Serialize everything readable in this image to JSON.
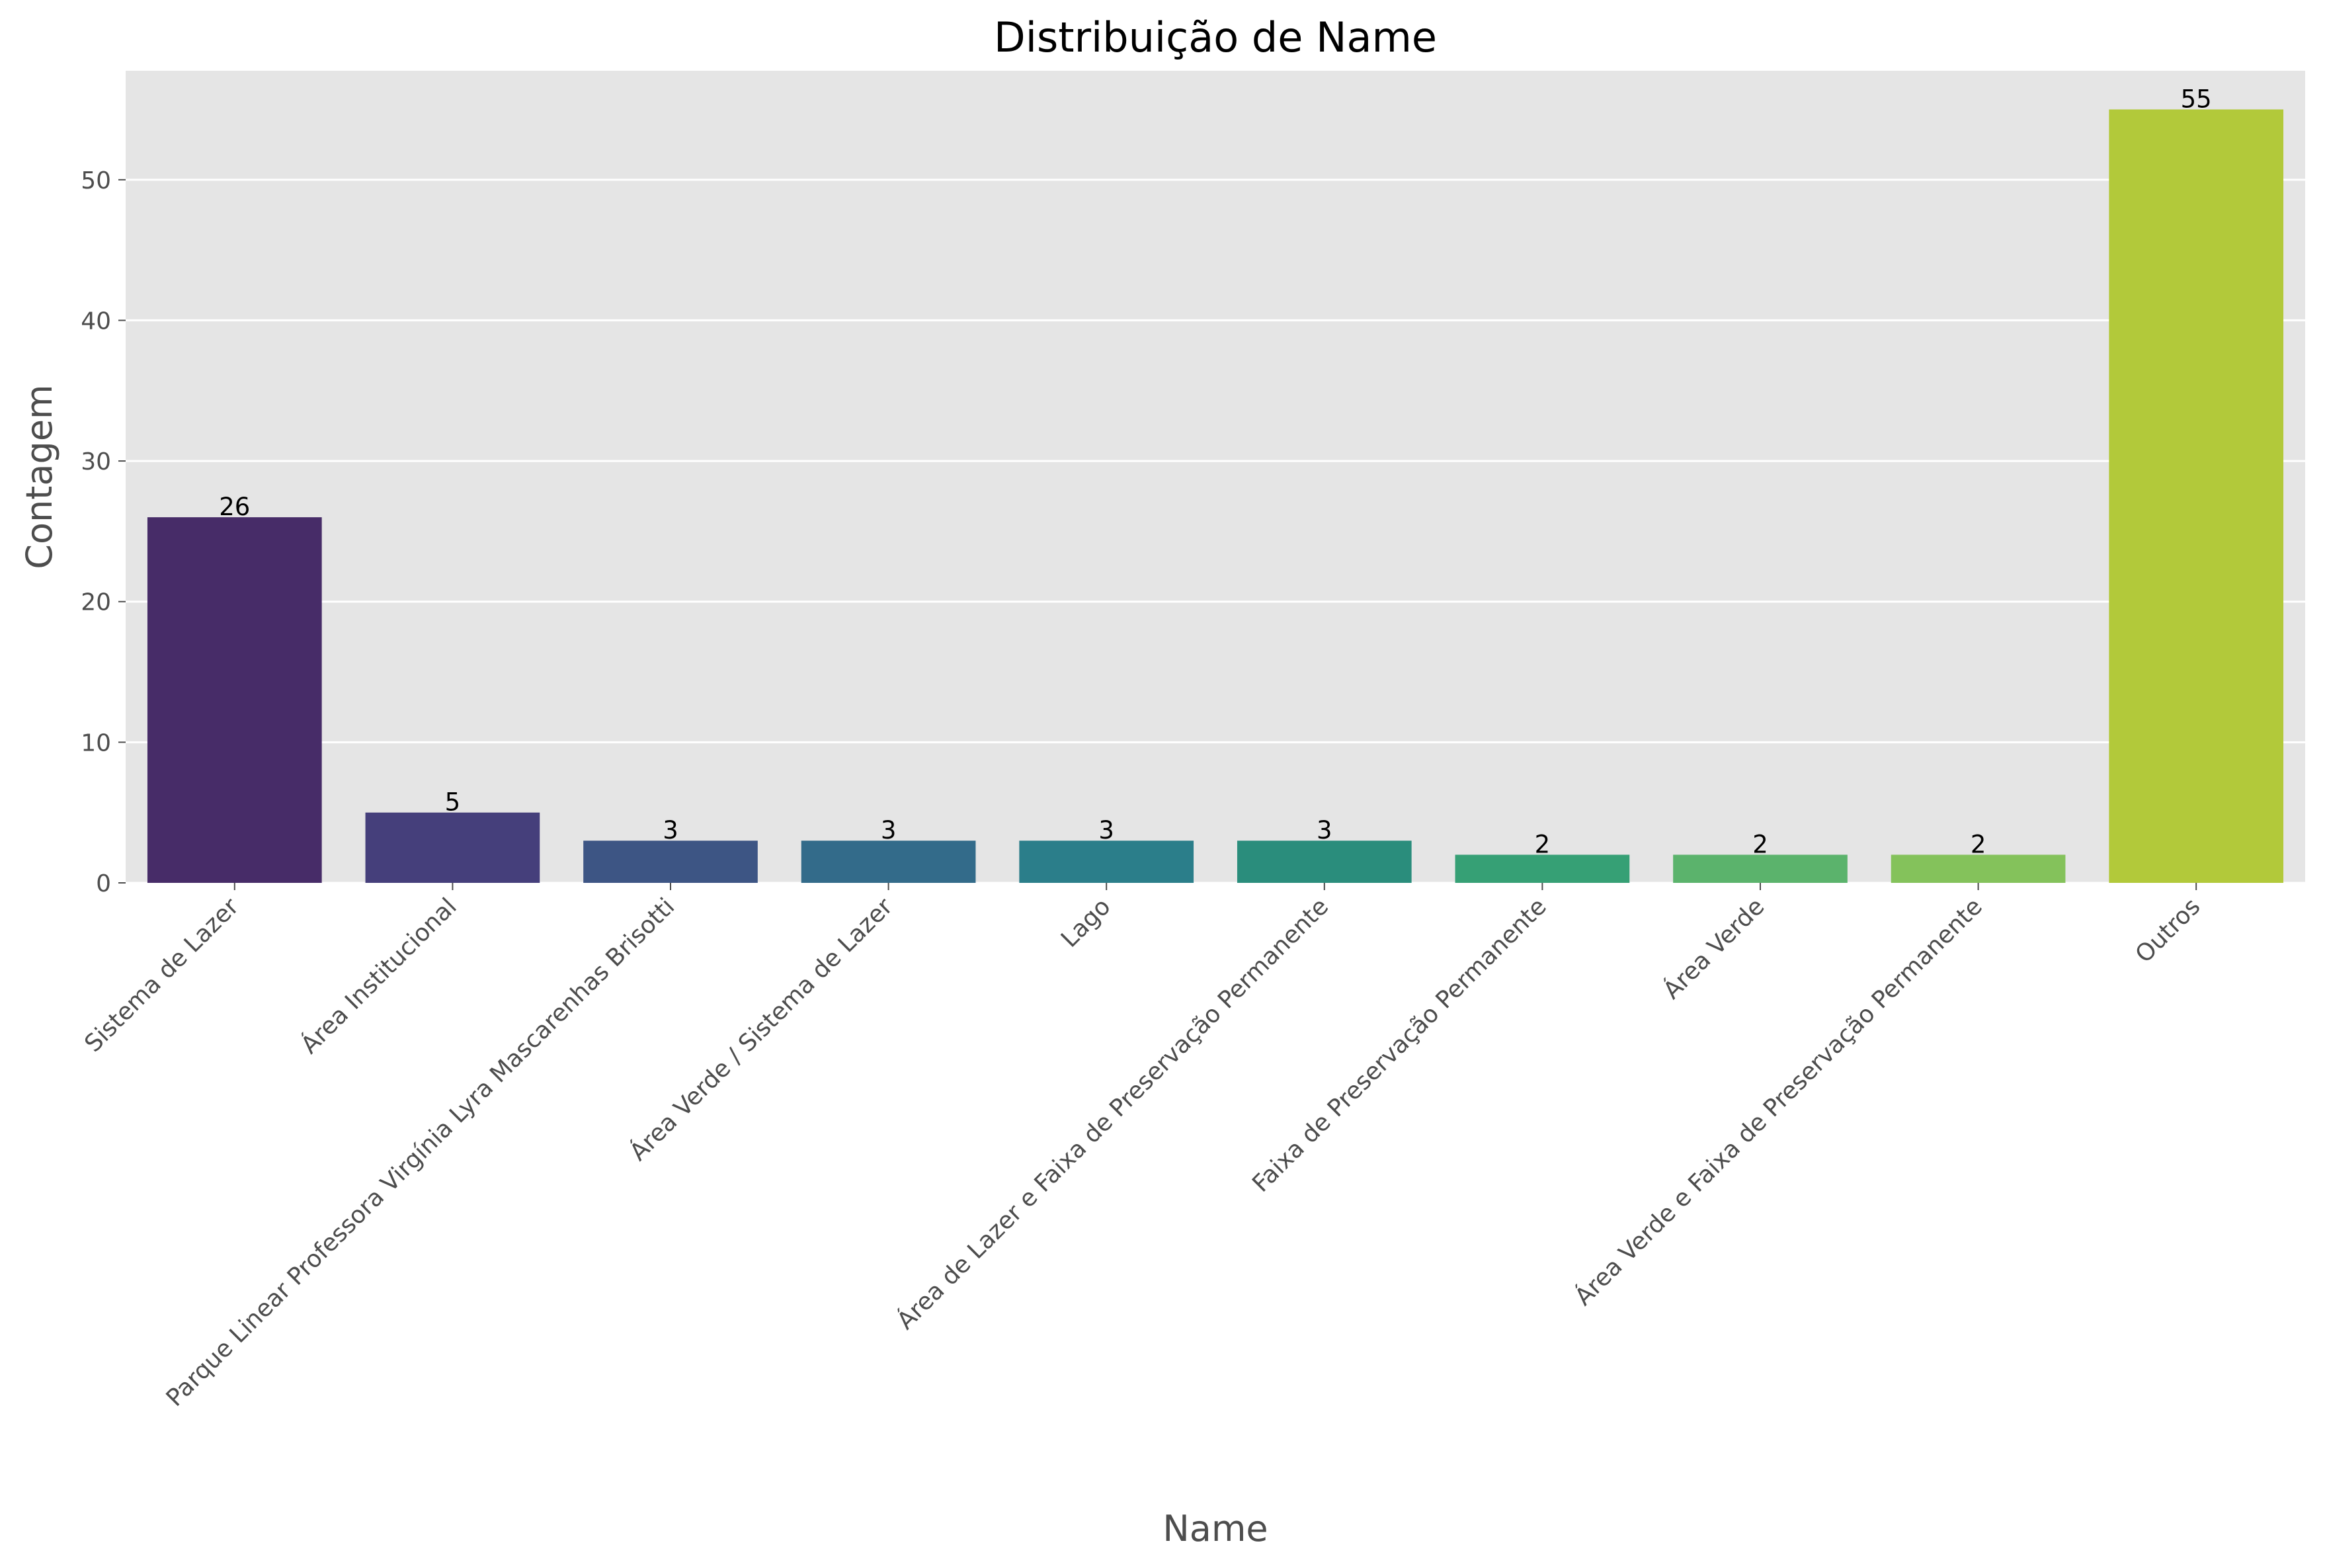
{
  "chart_data": {
    "type": "bar",
    "title": "Distribuição de Name",
    "xlabel": "Name",
    "ylabel": "Contagem",
    "categories": [
      "Sistema de Lazer",
      "Área Institucional",
      "Parque Linear Professora Virgínia Lyra Mascarenhas Brisotti",
      "Área Verde / Sistema de Lazer",
      "Lago",
      "Área de Lazer e Faixa de Preservação Permanente",
      "Faixa de Preservação Permanente",
      "Área Verde",
      "Área Verde e Faixa de Preservação Permanente",
      "Outros"
    ],
    "values": [
      26,
      5,
      3,
      3,
      3,
      3,
      2,
      2,
      2,
      55
    ],
    "bar_colors": [
      "#472c68",
      "#453f7b",
      "#3d5584",
      "#336b8a",
      "#2b7e8a",
      "#2a8d7c",
      "#36a075",
      "#5bb36c",
      "#84c25b",
      "#b2c93a"
    ],
    "ylim": [
      0,
      57.75
    ],
    "yticks": [
      0,
      10,
      20,
      30,
      40,
      50
    ],
    "grid": true,
    "background_color": "#e5e5e5",
    "grid_color": "#ffffff"
  }
}
